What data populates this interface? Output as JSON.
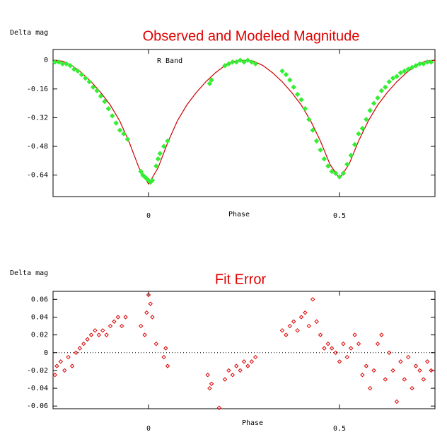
{
  "chart_data": [
    {
      "type": "line",
      "title": "Observed and Modeled Magnitude",
      "ylabel": "Delta mag",
      "xlabel": "Phase",
      "annotation": "R Band",
      "xlim": [
        -0.25,
        0.75
      ],
      "xticks": [
        0,
        0.5
      ],
      "ylim": [
        -0.76,
        0.06
      ],
      "yticks": [
        0,
        -0.16,
        -0.32,
        -0.48,
        -0.64
      ],
      "series": [
        {
          "mode": "line",
          "color": "#cc0000",
          "x": [
            -0.25,
            -0.225,
            -0.2,
            -0.175,
            -0.15,
            -0.125,
            -0.1,
            -0.075,
            -0.05,
            -0.025,
            0,
            0.025,
            0.05,
            0.075,
            0.1,
            0.125,
            0.15,
            0.175,
            0.2,
            0.225,
            0.25,
            0.275,
            0.3,
            0.325,
            0.35,
            0.375,
            0.4,
            0.425,
            0.45,
            0.475,
            0.5,
            0.525,
            0.55,
            0.575,
            0.6,
            0.625,
            0.65,
            0.675,
            0.7,
            0.725,
            0.75
          ],
          "values": [
            0,
            -0.005,
            -0.03,
            -0.07,
            -0.12,
            -0.18,
            -0.25,
            -0.34,
            -0.46,
            -0.6,
            -0.69,
            -0.6,
            -0.46,
            -0.34,
            -0.25,
            -0.18,
            -0.12,
            -0.07,
            -0.03,
            -0.005,
            0,
            -0.005,
            -0.03,
            -0.07,
            -0.12,
            -0.18,
            -0.25,
            -0.34,
            -0.45,
            -0.58,
            -0.66,
            -0.58,
            -0.45,
            -0.34,
            -0.25,
            -0.18,
            -0.12,
            -0.07,
            -0.03,
            -0.005,
            0
          ]
        },
        {
          "mode": "markers",
          "color": "#33ee33",
          "x": [
            -0.245,
            -0.235,
            -0.225,
            -0.215,
            -0.205,
            -0.195,
            -0.185,
            -0.175,
            -0.165,
            -0.155,
            -0.145,
            -0.135,
            -0.125,
            -0.115,
            -0.105,
            -0.095,
            -0.085,
            -0.075,
            -0.065,
            -0.055,
            -0.02,
            -0.015,
            -0.01,
            -0.005,
            0,
            0.005,
            0.01,
            0.02,
            0.025,
            0.03,
            0.04,
            0.05,
            0.16,
            0.165,
            0.2,
            0.21,
            0.22,
            0.23,
            0.24,
            0.25,
            0.26,
            0.27,
            0.28,
            0.35,
            0.36,
            0.37,
            0.38,
            0.39,
            0.4,
            0.41,
            0.42,
            0.43,
            0.44,
            0.45,
            0.46,
            0.47,
            0.48,
            0.49,
            0.5,
            0.51,
            0.52,
            0.53,
            0.54,
            0.55,
            0.56,
            0.57,
            0.58,
            0.59,
            0.6,
            0.61,
            0.62,
            0.63,
            0.64,
            0.65,
            0.66,
            0.67,
            0.68,
            0.69,
            0.7,
            0.71,
            0.72,
            0.73,
            0.74
          ],
          "values": [
            -0.01,
            -0.01,
            -0.02,
            -0.02,
            -0.03,
            -0.05,
            -0.06,
            -0.08,
            -0.1,
            -0.12,
            -0.15,
            -0.17,
            -0.2,
            -0.23,
            -0.27,
            -0.31,
            -0.35,
            -0.39,
            -0.41,
            -0.44,
            -0.62,
            -0.64,
            -0.65,
            -0.66,
            -0.67,
            -0.68,
            -0.67,
            -0.59,
            -0.55,
            -0.52,
            -0.48,
            -0.45,
            -0.13,
            -0.11,
            -0.03,
            -0.02,
            -0.01,
            -0.01,
            0,
            -0.01,
            0,
            -0.01,
            -0.02,
            -0.06,
            -0.08,
            -0.11,
            -0.15,
            -0.19,
            -0.22,
            -0.27,
            -0.33,
            -0.39,
            -0.45,
            -0.5,
            -0.55,
            -0.59,
            -0.62,
            -0.63,
            -0.65,
            -0.63,
            -0.58,
            -0.53,
            -0.47,
            -0.41,
            -0.38,
            -0.33,
            -0.28,
            -0.24,
            -0.21,
            -0.17,
            -0.15,
            -0.12,
            -0.1,
            -0.09,
            -0.07,
            -0.06,
            -0.05,
            -0.04,
            -0.03,
            -0.02,
            -0.02,
            -0.01,
            -0.01
          ]
        }
      ]
    },
    {
      "type": "scatter",
      "title": "Fit Error",
      "ylabel": "Delta mag",
      "xlabel": "Phase",
      "color": "#dd0000",
      "zero_line": true,
      "xlim": [
        -0.25,
        0.75
      ],
      "xticks": [
        0,
        0.5
      ],
      "ylim": [
        -0.063,
        0.069
      ],
      "yticks": [
        0.06,
        0.04,
        0.02,
        0,
        -0.02,
        -0.04,
        -0.06
      ],
      "x": [
        -0.245,
        -0.24,
        -0.23,
        -0.22,
        -0.21,
        -0.2,
        -0.19,
        -0.18,
        -0.17,
        -0.16,
        -0.15,
        -0.14,
        -0.13,
        -0.12,
        -0.11,
        -0.1,
        -0.09,
        -0.08,
        -0.07,
        -0.06,
        -0.02,
        -0.01,
        -0.005,
        0,
        0.005,
        0.01,
        0.02,
        0.04,
        0.045,
        0.05,
        0.155,
        0.16,
        0.165,
        0.185,
        0.2,
        0.21,
        0.22,
        0.23,
        0.24,
        0.25,
        0.26,
        0.27,
        0.28,
        0.35,
        0.36,
        0.37,
        0.38,
        0.39,
        0.4,
        0.41,
        0.42,
        0.43,
        0.44,
        0.45,
        0.46,
        0.47,
        0.48,
        0.49,
        0.5,
        0.51,
        0.52,
        0.53,
        0.54,
        0.55,
        0.56,
        0.57,
        0.58,
        0.59,
        0.6,
        0.61,
        0.62,
        0.63,
        0.64,
        0.65,
        0.66,
        0.67,
        0.68,
        0.69,
        0.7,
        0.71,
        0.72,
        0.73,
        0.74
      ],
      "values": [
        -0.025,
        -0.015,
        -0.01,
        -0.02,
        -0.005,
        -0.015,
        0,
        0.005,
        0.01,
        0.015,
        0.02,
        0.025,
        0.02,
        0.025,
        0.02,
        0.03,
        0.035,
        0.04,
        0.03,
        0.04,
        0.03,
        0.02,
        0.045,
        0.065,
        0.055,
        0.04,
        0.01,
        -0.005,
        0.005,
        -0.015,
        -0.025,
        -0.04,
        -0.035,
        -0.062,
        -0.03,
        -0.02,
        -0.025,
        -0.015,
        -0.02,
        -0.01,
        -0.015,
        -0.01,
        -0.005,
        0.025,
        0.02,
        0.03,
        0.035,
        0.025,
        0.04,
        0.045,
        0.03,
        0.06,
        0.035,
        0.02,
        0.005,
        0.01,
        0.005,
        0,
        -0.01,
        0.01,
        -0.005,
        0.005,
        0.02,
        0.01,
        -0.025,
        -0.015,
        -0.04,
        -0.02,
        0.01,
        0.02,
        -0.03,
        0,
        -0.02,
        -0.055,
        -0.01,
        -0.03,
        -0.005,
        -0.04,
        -0.015,
        -0.02,
        -0.03,
        -0.01,
        -0.02
      ]
    }
  ]
}
